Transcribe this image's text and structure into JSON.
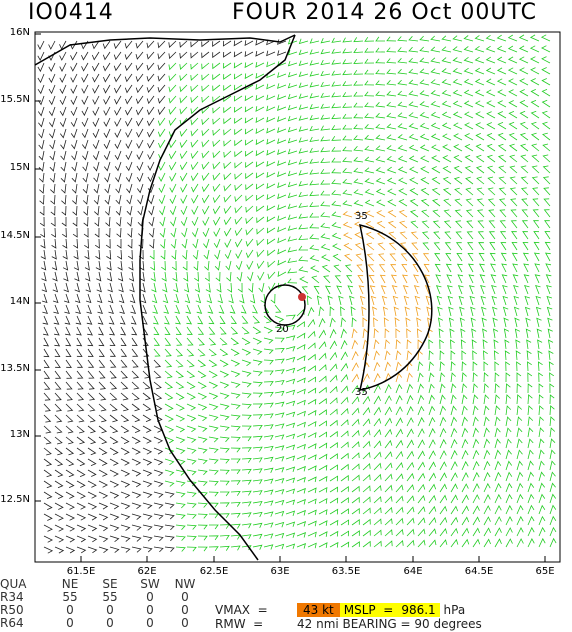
{
  "title": {
    "storm_id": "IO0414",
    "main": "FOUR 2014 26 Oct 00UTC"
  },
  "colors": {
    "outer_barbs": "#222222",
    "mid_barbs": "#22cc22",
    "strong_barbs": "#f0a020",
    "center": "#cc3333"
  },
  "lat_labels": [
    "16N",
    "15.5N",
    "15N",
    "14.5N",
    "14N",
    "13.5N",
    "13N",
    "12.5N"
  ],
  "lon_labels": [
    "61.5E",
    "62E",
    "62.5E",
    "63E",
    "63.5E",
    "64E",
    "64.5E",
    "65E"
  ],
  "contour_labels": {
    "r20": "20",
    "r35_top": "35",
    "r35_bottom": "35"
  },
  "table": {
    "header": [
      "QUA",
      "NE",
      "SE",
      "SW",
      "NW"
    ],
    "rows": [
      {
        "label": "R34",
        "values": [
          "55",
          "55",
          "0",
          "0"
        ]
      },
      {
        "label": "R50",
        "values": [
          "0",
          "0",
          "0",
          "0"
        ]
      },
      {
        "label": "R64",
        "values": [
          "0",
          "0",
          "0",
          "0"
        ]
      }
    ]
  },
  "info": {
    "vmax_label": "VMAX  =",
    "vmax_value": "43 kt",
    "mslp_label": "MSLP  =",
    "mslp_value": "986.1",
    "mslp_unit": "hPa",
    "rmw_label": "RMW  =",
    "rmw_value": "42 nmi",
    "bearing_label": "BEARING =",
    "bearing_value": "90 degrees"
  }
}
